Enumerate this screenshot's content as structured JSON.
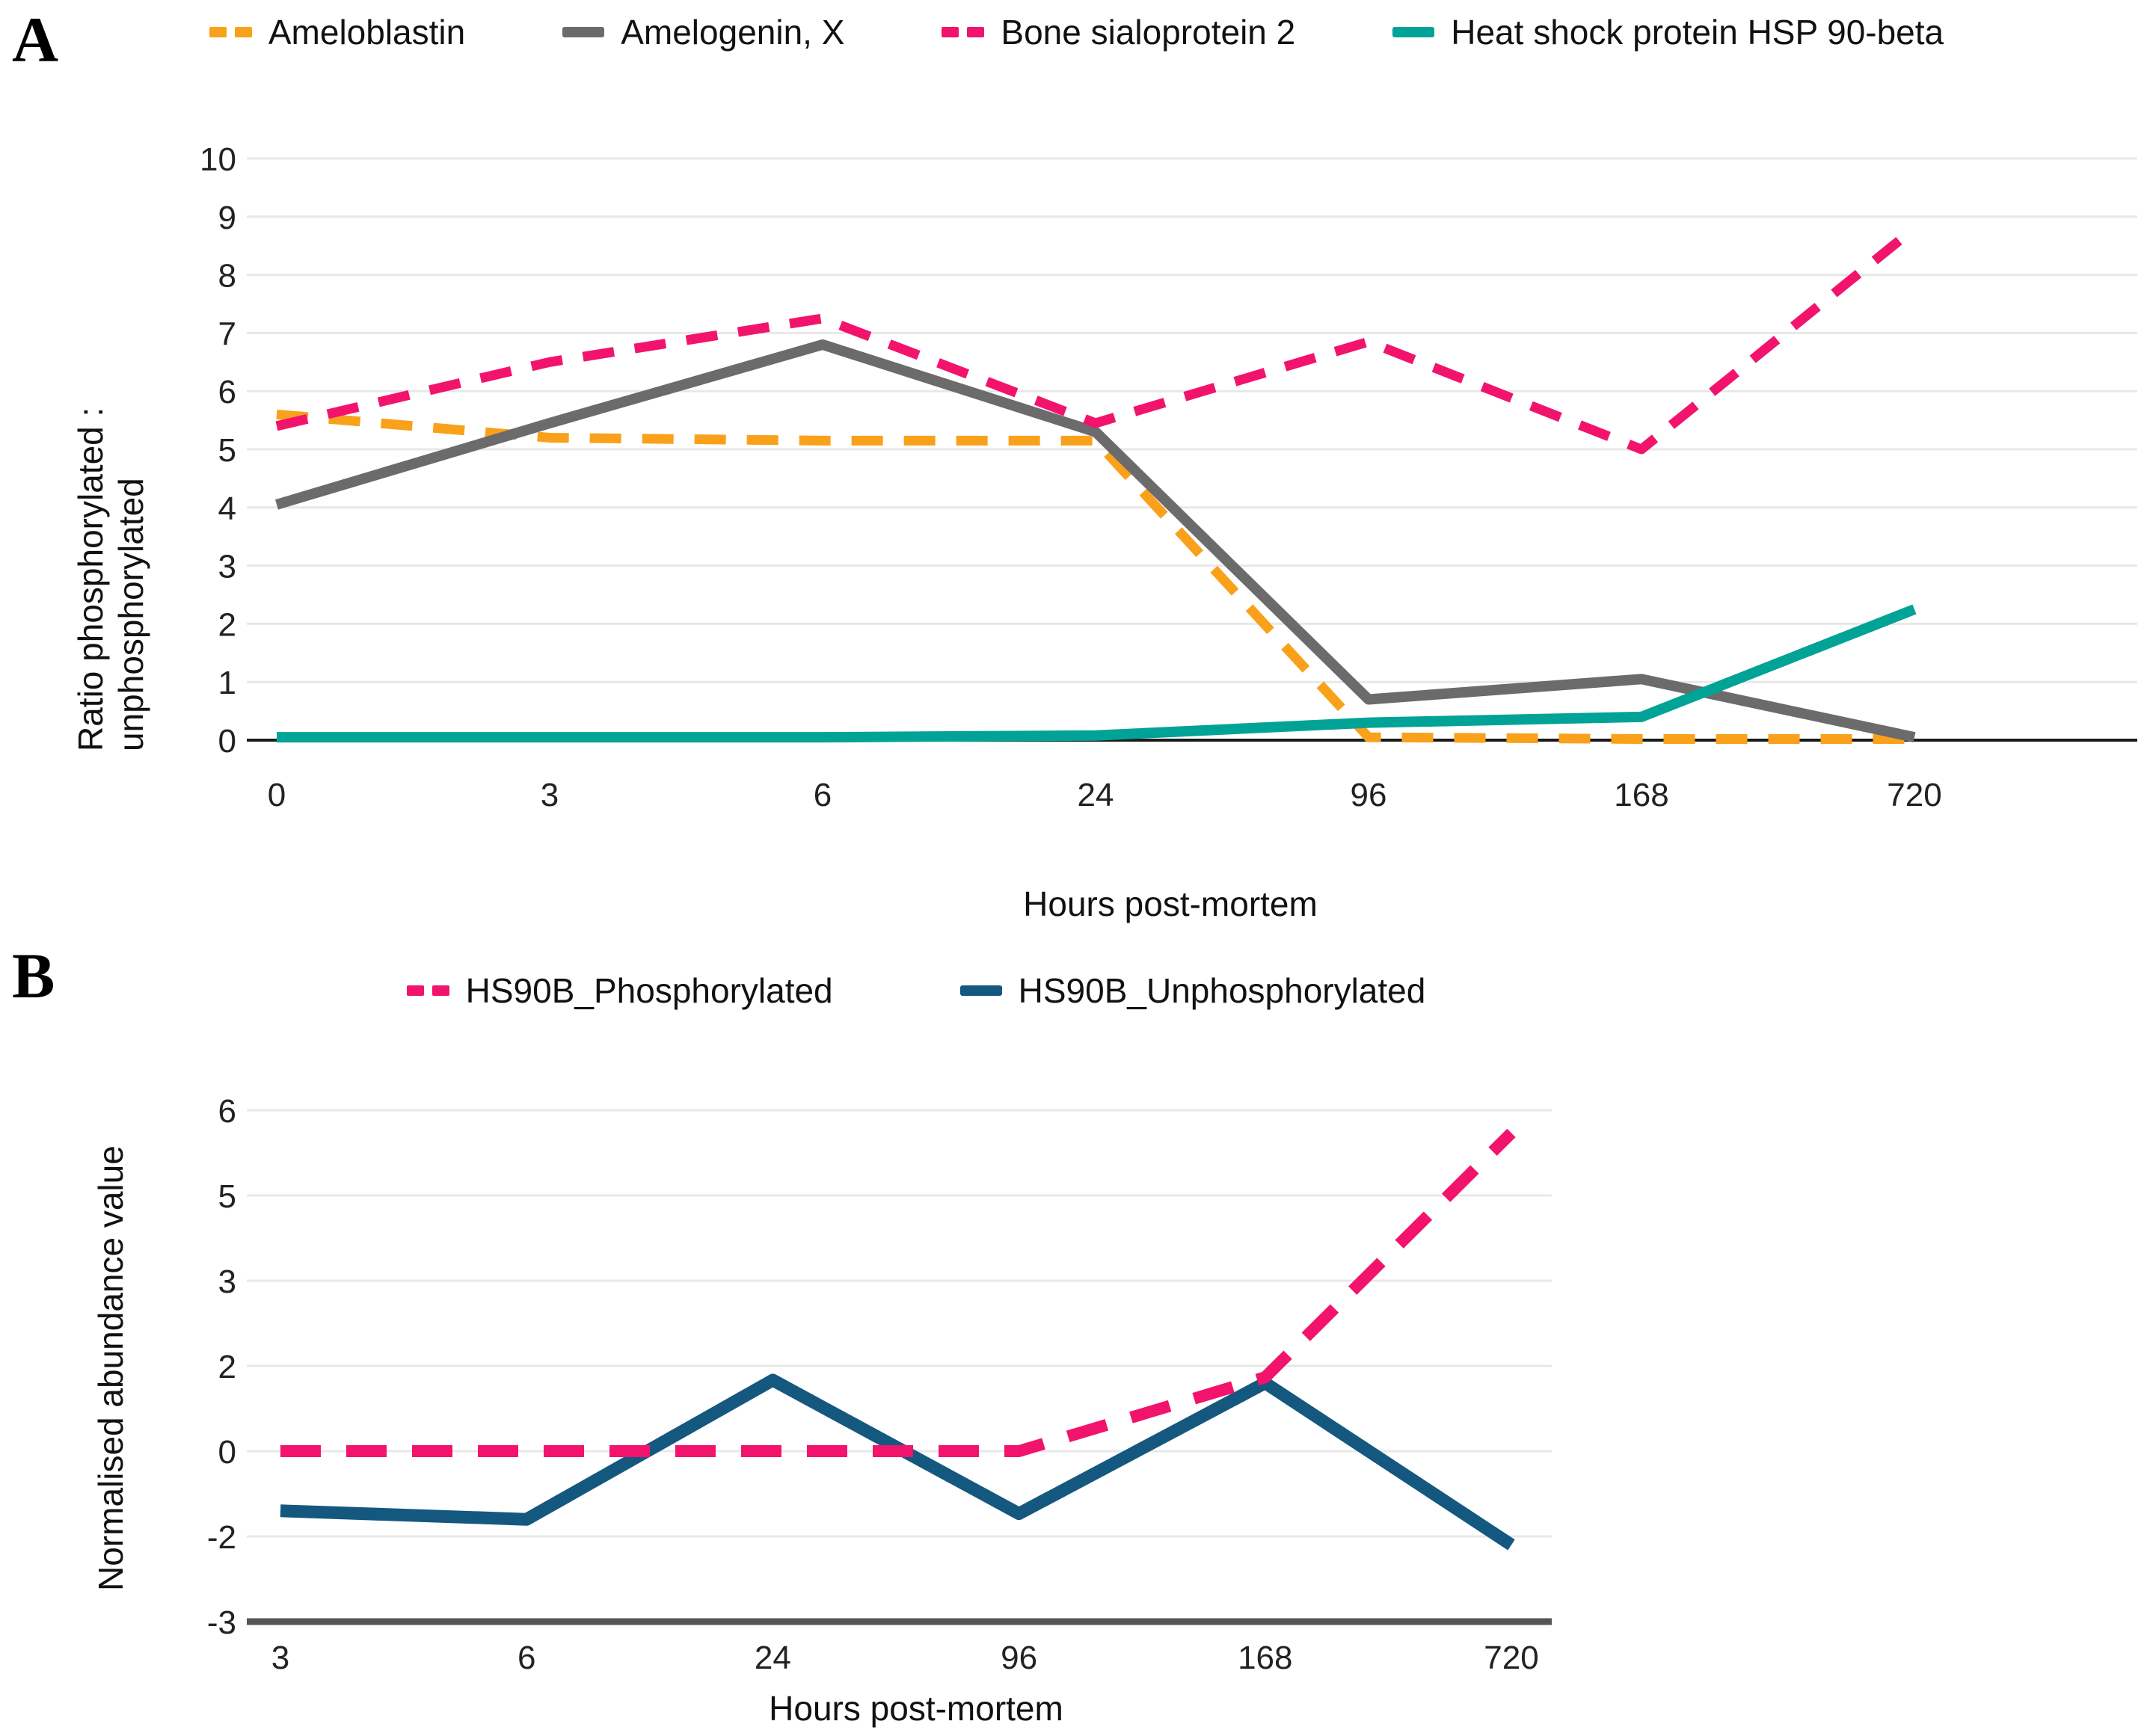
{
  "background": "#FFFFFF",
  "panels": [
    {
      "letter": "A"
    },
    {
      "letter": "B"
    }
  ],
  "chart_data": [
    {
      "type": "line",
      "title": "",
      "panel": "A",
      "categories": [
        "0",
        "3",
        "6",
        "24",
        "96",
        "168",
        "720"
      ],
      "xlabel": "Hours post-mortem",
      "ylabel": "Ratio phosphorylated : unphosphorylated",
      "ylim": [
        0,
        10
      ],
      "yticks": [
        0,
        1,
        2,
        3,
        4,
        5,
        6,
        7,
        8,
        9,
        10
      ],
      "grid": true,
      "legend_position": "top",
      "series": [
        {
          "name": "Ameloblastin",
          "color": "#F9A11B",
          "style": "dashed",
          "values": [
            5.6,
            5.2,
            5.15,
            5.15,
            0.05,
            0.02,
            0.02
          ]
        },
        {
          "name": "Amelogenin, X",
          "color": "#6B6B6B",
          "style": "solid",
          "values": [
            4.05,
            5.45,
            6.8,
            5.3,
            0.7,
            1.05,
            0.05
          ]
        },
        {
          "name": "Bone sialoprotein 2",
          "color": "#F2146C",
          "style": "dashed",
          "values": [
            5.4,
            6.5,
            7.25,
            5.45,
            6.85,
            5.0,
            8.8
          ]
        },
        {
          "name": "Heat shock protein HSP 90-beta",
          "color": "#00A396",
          "style": "solid",
          "values": [
            0.05,
            0.05,
            0.05,
            0.08,
            0.3,
            0.4,
            2.25
          ]
        }
      ]
    },
    {
      "type": "line",
      "title": "",
      "panel": "B",
      "categories": [
        "3",
        "6",
        "24",
        "96",
        "168",
        "720"
      ],
      "xlabel": "Hours post-mortem",
      "ylabel": "Normalised abundance value",
      "ylim": [
        -3,
        6
      ],
      "ytick_values": [
        6,
        4.5,
        3,
        1.5,
        0,
        -1.5,
        -3
      ],
      "ytick_labels": [
        "6",
        "5",
        "3",
        "2",
        "0",
        "-2",
        "-3"
      ],
      "grid": true,
      "legend_position": "top",
      "series": [
        {
          "name": "HS90B_Phosphorylated",
          "color": "#F2146C",
          "style": "dashed",
          "values": [
            0,
            0,
            0,
            0,
            1.3,
            5.6
          ]
        },
        {
          "name": "HS90B_Unphosphorylated",
          "color": "#14587F",
          "style": "solid",
          "values": [
            -1.05,
            -1.2,
            1.25,
            -1.1,
            1.2,
            -1.65
          ]
        }
      ]
    }
  ]
}
